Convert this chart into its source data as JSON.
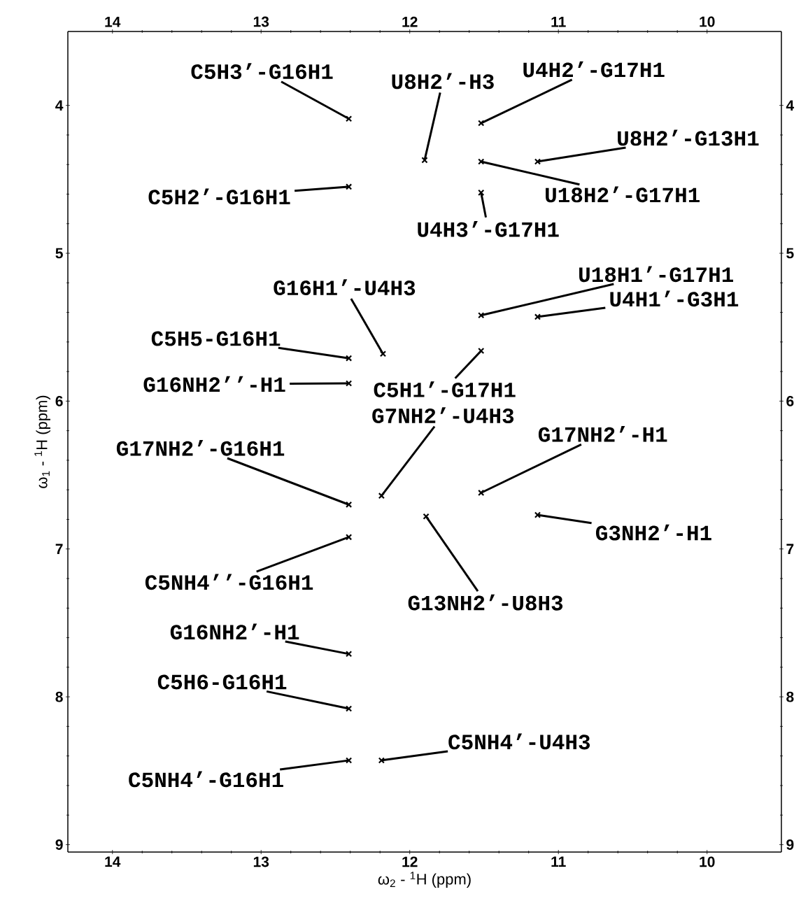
{
  "chart_data": {
    "type": "scatter",
    "xlabel": "ω$_{2}$ - $^{1}$H  (ppm)",
    "ylabel": "ω$_{1}$ - $^{1}$H  (ppm)",
    "xlim": [
      14.3,
      9.5
    ],
    "xticks": [
      14,
      13,
      12,
      11,
      10
    ],
    "x2lim": [
      14.3,
      9.5
    ],
    "x2ticks": [
      14,
      13,
      12,
      11,
      10
    ],
    "ylim": [
      9.05,
      3.5
    ],
    "yticks": [
      4,
      5,
      6,
      7,
      8,
      9
    ],
    "y2lim": [
      9.05,
      3.5
    ],
    "y2ticks": [
      4,
      5,
      6,
      7,
      8,
      9
    ],
    "marker": "cross",
    "series": [
      {
        "color": "#000000",
        "x": [
          12.41,
          11.9,
          11.52,
          11.14,
          11.52,
          12.41,
          11.52,
          11.52,
          11.14,
          12.18,
          12.41,
          11.52,
          12.41,
          12.19,
          12.41,
          11.52,
          11.14,
          11.89,
          12.41,
          12.41,
          12.41,
          12.19,
          12.41
        ],
        "values": [
          4.09,
          4.37,
          4.12,
          4.38,
          4.38,
          4.55,
          4.59,
          5.42,
          5.43,
          5.68,
          5.71,
          5.66,
          5.88,
          6.64,
          6.7,
          6.62,
          6.77,
          6.78,
          6.92,
          7.71,
          8.08,
          8.43,
          8.43
        ]
      }
    ],
    "annotations": [
      {
        "text": "C5H3’-G16H1",
        "x": 12.41,
        "y": 4.09
      },
      {
        "text": "U8H2’-H3",
        "x": 11.9,
        "y": 4.37
      },
      {
        "text": "U4H2’-G17H1",
        "x": 11.52,
        "y": 4.12
      },
      {
        "text": "U8H2’-G13H1",
        "x": 11.14,
        "y": 4.38
      },
      {
        "text": "U18H2’-G17H1",
        "x": 11.52,
        "y": 4.38
      },
      {
        "text": "C5H2’-G16H1",
        "x": 12.41,
        "y": 4.55
      },
      {
        "text": "U4H3’-G17H1",
        "x": 11.52,
        "y": 4.59
      },
      {
        "text": "U18H1’-G17H1",
        "x": 11.52,
        "y": 5.42
      },
      {
        "text": "U4H1’-G3H1",
        "x": 11.14,
        "y": 5.43
      },
      {
        "text": "G16H1’-U4H3",
        "x": 12.18,
        "y": 5.68
      },
      {
        "text": "C5H5-G16H1",
        "x": 12.41,
        "y": 5.71
      },
      {
        "text": "C5H1’-G17H1",
        "x": 11.52,
        "y": 5.66
      },
      {
        "text": "G16NH2’’-H1",
        "x": 12.41,
        "y": 5.88
      },
      {
        "text": "G7NH2’-U4H3",
        "x": 12.19,
        "y": 6.64
      },
      {
        "text": "G17NH2’-G16H1",
        "x": 12.41,
        "y": 6.7
      },
      {
        "text": "G17NH2’-H1",
        "x": 11.52,
        "y": 6.62
      },
      {
        "text": "G3NH2’-H1",
        "x": 11.14,
        "y": 6.77
      },
      {
        "text": "G13NH2’-U8H3",
        "x": 11.89,
        "y": 6.78
      },
      {
        "text": "C5NH4’’-G16H1",
        "x": 12.41,
        "y": 6.92
      },
      {
        "text": "G16NH2’-H1",
        "x": 12.41,
        "y": 7.71
      },
      {
        "text": "C5H6-G16H1",
        "x": 12.41,
        "y": 8.08
      },
      {
        "text": "C5NH4’-U4H3",
        "x": 12.19,
        "y": 8.43
      },
      {
        "text": "C5NH4’-G16H1",
        "x": 12.41,
        "y": 8.43
      }
    ]
  }
}
